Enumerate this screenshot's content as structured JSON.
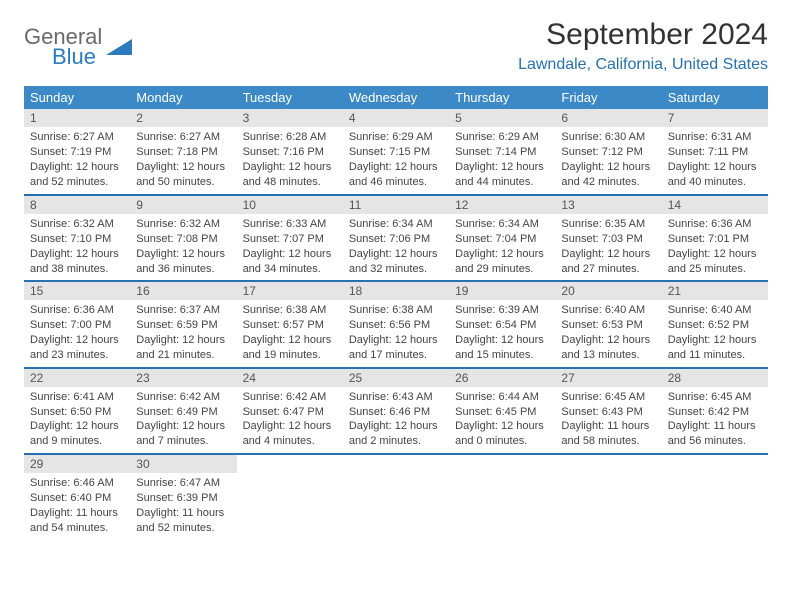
{
  "logo": {
    "top": "General",
    "bottom": "Blue",
    "icon_color": "#2b7bbf"
  },
  "title": "September 2024",
  "location": "Lawndale, California, United States",
  "colors": {
    "header_bg": "#3b89c7",
    "header_fg": "#ffffff",
    "row_divider": "#2671af",
    "daynum_bg": "#e5e5e5",
    "accent": "#2b7bbf"
  },
  "typography": {
    "title_fontsize": 30,
    "location_fontsize": 16,
    "dayheader_fontsize": 13,
    "body_fontsize": 11
  },
  "day_headers": [
    "Sunday",
    "Monday",
    "Tuesday",
    "Wednesday",
    "Thursday",
    "Friday",
    "Saturday"
  ],
  "weeks": [
    [
      {
        "n": "1",
        "sunrise": "6:27 AM",
        "sunset": "7:19 PM",
        "dl1": "12 hours",
        "dl2": "and 52 minutes."
      },
      {
        "n": "2",
        "sunrise": "6:27 AM",
        "sunset": "7:18 PM",
        "dl1": "12 hours",
        "dl2": "and 50 minutes."
      },
      {
        "n": "3",
        "sunrise": "6:28 AM",
        "sunset": "7:16 PM",
        "dl1": "12 hours",
        "dl2": "and 48 minutes."
      },
      {
        "n": "4",
        "sunrise": "6:29 AM",
        "sunset": "7:15 PM",
        "dl1": "12 hours",
        "dl2": "and 46 minutes."
      },
      {
        "n": "5",
        "sunrise": "6:29 AM",
        "sunset": "7:14 PM",
        "dl1": "12 hours",
        "dl2": "and 44 minutes."
      },
      {
        "n": "6",
        "sunrise": "6:30 AM",
        "sunset": "7:12 PM",
        "dl1": "12 hours",
        "dl2": "and 42 minutes."
      },
      {
        "n": "7",
        "sunrise": "6:31 AM",
        "sunset": "7:11 PM",
        "dl1": "12 hours",
        "dl2": "and 40 minutes."
      }
    ],
    [
      {
        "n": "8",
        "sunrise": "6:32 AM",
        "sunset": "7:10 PM",
        "dl1": "12 hours",
        "dl2": "and 38 minutes."
      },
      {
        "n": "9",
        "sunrise": "6:32 AM",
        "sunset": "7:08 PM",
        "dl1": "12 hours",
        "dl2": "and 36 minutes."
      },
      {
        "n": "10",
        "sunrise": "6:33 AM",
        "sunset": "7:07 PM",
        "dl1": "12 hours",
        "dl2": "and 34 minutes."
      },
      {
        "n": "11",
        "sunrise": "6:34 AM",
        "sunset": "7:06 PM",
        "dl1": "12 hours",
        "dl2": "and 32 minutes."
      },
      {
        "n": "12",
        "sunrise": "6:34 AM",
        "sunset": "7:04 PM",
        "dl1": "12 hours",
        "dl2": "and 29 minutes."
      },
      {
        "n": "13",
        "sunrise": "6:35 AM",
        "sunset": "7:03 PM",
        "dl1": "12 hours",
        "dl2": "and 27 minutes."
      },
      {
        "n": "14",
        "sunrise": "6:36 AM",
        "sunset": "7:01 PM",
        "dl1": "12 hours",
        "dl2": "and 25 minutes."
      }
    ],
    [
      {
        "n": "15",
        "sunrise": "6:36 AM",
        "sunset": "7:00 PM",
        "dl1": "12 hours",
        "dl2": "and 23 minutes."
      },
      {
        "n": "16",
        "sunrise": "6:37 AM",
        "sunset": "6:59 PM",
        "dl1": "12 hours",
        "dl2": "and 21 minutes."
      },
      {
        "n": "17",
        "sunrise": "6:38 AM",
        "sunset": "6:57 PM",
        "dl1": "12 hours",
        "dl2": "and 19 minutes."
      },
      {
        "n": "18",
        "sunrise": "6:38 AM",
        "sunset": "6:56 PM",
        "dl1": "12 hours",
        "dl2": "and 17 minutes."
      },
      {
        "n": "19",
        "sunrise": "6:39 AM",
        "sunset": "6:54 PM",
        "dl1": "12 hours",
        "dl2": "and 15 minutes."
      },
      {
        "n": "20",
        "sunrise": "6:40 AM",
        "sunset": "6:53 PM",
        "dl1": "12 hours",
        "dl2": "and 13 minutes."
      },
      {
        "n": "21",
        "sunrise": "6:40 AM",
        "sunset": "6:52 PM",
        "dl1": "12 hours",
        "dl2": "and 11 minutes."
      }
    ],
    [
      {
        "n": "22",
        "sunrise": "6:41 AM",
        "sunset": "6:50 PM",
        "dl1": "12 hours",
        "dl2": "and 9 minutes."
      },
      {
        "n": "23",
        "sunrise": "6:42 AM",
        "sunset": "6:49 PM",
        "dl1": "12 hours",
        "dl2": "and 7 minutes."
      },
      {
        "n": "24",
        "sunrise": "6:42 AM",
        "sunset": "6:47 PM",
        "dl1": "12 hours",
        "dl2": "and 4 minutes."
      },
      {
        "n": "25",
        "sunrise": "6:43 AM",
        "sunset": "6:46 PM",
        "dl1": "12 hours",
        "dl2": "and 2 minutes."
      },
      {
        "n": "26",
        "sunrise": "6:44 AM",
        "sunset": "6:45 PM",
        "dl1": "12 hours",
        "dl2": "and 0 minutes."
      },
      {
        "n": "27",
        "sunrise": "6:45 AM",
        "sunset": "6:43 PM",
        "dl1": "11 hours",
        "dl2": "and 58 minutes."
      },
      {
        "n": "28",
        "sunrise": "6:45 AM",
        "sunset": "6:42 PM",
        "dl1": "11 hours",
        "dl2": "and 56 minutes."
      }
    ],
    [
      {
        "n": "29",
        "sunrise": "6:46 AM",
        "sunset": "6:40 PM",
        "dl1": "11 hours",
        "dl2": "and 54 minutes."
      },
      {
        "n": "30",
        "sunrise": "6:47 AM",
        "sunset": "6:39 PM",
        "dl1": "11 hours",
        "dl2": "and 52 minutes."
      },
      null,
      null,
      null,
      null,
      null
    ]
  ],
  "labels": {
    "sunrise": "Sunrise:",
    "sunset": "Sunset:",
    "daylight": "Daylight:"
  }
}
